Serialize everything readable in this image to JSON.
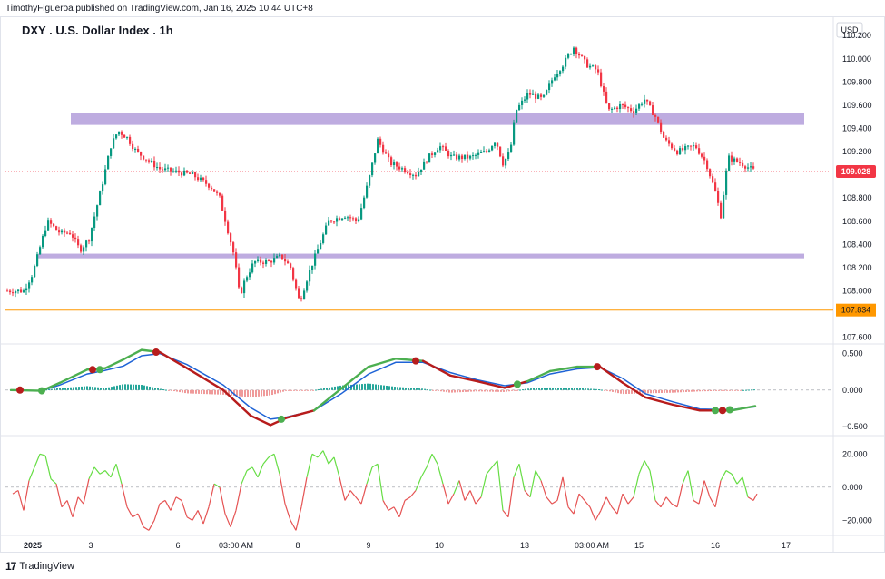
{
  "header": {
    "publisher_line": "TimothyFigueroa published on TradingView.com, Jan 16, 2025 10:44 UTC+8",
    "title": "DXY . U.S. Dollar Index . 1h"
  },
  "footer": {
    "brand": "TradingView",
    "logo_glyph": "17"
  },
  "colors": {
    "bull": "#089981",
    "bear": "#f23645",
    "zone": "#b39ddb",
    "support_line": "#ff9800",
    "price_label_bg": "#f23645",
    "macd_fast": "#4caf50",
    "macd_slow": "#1e63d6",
    "macd_fast_bear": "#b71c1c",
    "hist_bull": "#26a69a",
    "hist_bear": "#ef9a9a",
    "osc_up": "#66dd44",
    "osc_down": "#e55353"
  },
  "chart_data": [
    {
      "type": "candlestick",
      "name": "price",
      "unit_label": "USD",
      "ylim": [
        107.55,
        110.35
      ],
      "yticks": [
        "110.200",
        "110.000",
        "109.800",
        "109.600",
        "109.400",
        "109.200",
        "108.800",
        "108.600",
        "108.400",
        "108.200",
        "108.000",
        "107.600"
      ],
      "xticks": [
        "2025",
        "3",
        "6",
        "03:00 AM",
        "8",
        "9",
        "10",
        "13",
        "03:00 AM",
        "15",
        "16",
        "17"
      ],
      "xtick_bars": [
        30,
        94,
        190,
        254,
        322,
        400,
        478,
        572,
        646,
        698,
        782,
        860
      ],
      "last_price": "109.028",
      "support_price": "107.834",
      "zones": [
        {
          "from_bar": 72,
          "to_bar": 880,
          "low": 109.43,
          "high": 109.53
        },
        {
          "from_bar": 36,
          "to_bar": 880,
          "low": 108.28,
          "high": 108.32
        }
      ],
      "anchors": [
        [
          0,
          108.0
        ],
        [
          20,
          108.0
        ],
        [
          30,
          108.15
        ],
        [
          46,
          108.6
        ],
        [
          60,
          108.5
        ],
        [
          72,
          108.5
        ],
        [
          82,
          108.35
        ],
        [
          92,
          108.45
        ],
        [
          106,
          108.9
        ],
        [
          116,
          109.25
        ],
        [
          124,
          109.38
        ],
        [
          134,
          109.32
        ],
        [
          144,
          109.2
        ],
        [
          170,
          109.05
        ],
        [
          206,
          109.0
        ],
        [
          226,
          108.9
        ],
        [
          236,
          108.8
        ],
        [
          244,
          108.55
        ],
        [
          252,
          108.3
        ],
        [
          258,
          107.95
        ],
        [
          264,
          108.1
        ],
        [
          274,
          108.25
        ],
        [
          290,
          108.25
        ],
        [
          304,
          108.3
        ],
        [
          314,
          108.2
        ],
        [
          324,
          107.9
        ],
        [
          334,
          108.15
        ],
        [
          346,
          108.4
        ],
        [
          356,
          108.6
        ],
        [
          374,
          108.65
        ],
        [
          388,
          108.6
        ],
        [
          400,
          108.95
        ],
        [
          410,
          109.3
        ],
        [
          424,
          109.1
        ],
        [
          438,
          109.05
        ],
        [
          452,
          109.0
        ],
        [
          466,
          109.15
        ],
        [
          478,
          109.25
        ],
        [
          492,
          109.15
        ],
        [
          512,
          109.15
        ],
        [
          530,
          109.2
        ],
        [
          540,
          109.3
        ],
        [
          548,
          109.1
        ],
        [
          556,
          109.2
        ],
        [
          562,
          109.55
        ],
        [
          576,
          109.7
        ],
        [
          592,
          109.65
        ],
        [
          604,
          109.85
        ],
        [
          614,
          109.95
        ],
        [
          626,
          110.1
        ],
        [
          640,
          109.95
        ],
        [
          652,
          109.9
        ],
        [
          664,
          109.55
        ],
        [
          678,
          109.6
        ],
        [
          692,
          109.55
        ],
        [
          704,
          109.65
        ],
        [
          716,
          109.5
        ],
        [
          726,
          109.3
        ],
        [
          740,
          109.2
        ],
        [
          760,
          109.25
        ],
        [
          772,
          109.1
        ],
        [
          782,
          108.85
        ],
        [
          788,
          108.65
        ],
        [
          796,
          109.15
        ],
        [
          810,
          109.1
        ],
        [
          826,
          109.03
        ]
      ]
    },
    {
      "type": "line",
      "name": "macd",
      "ylim": [
        -0.6,
        0.62
      ],
      "yticks": [
        "0.500",
        "0.000",
        "−0.500"
      ],
      "fast": [
        [
          6,
          0.0
        ],
        [
          40,
          -0.01
        ],
        [
          60,
          0.1
        ],
        [
          90,
          0.28
        ],
        [
          110,
          0.3
        ],
        [
          130,
          0.42
        ],
        [
          150,
          0.55
        ],
        [
          170,
          0.52
        ],
        [
          200,
          0.3
        ],
        [
          240,
          0.0
        ],
        [
          270,
          -0.35
        ],
        [
          292,
          -0.48
        ],
        [
          310,
          -0.38
        ],
        [
          340,
          -0.28
        ],
        [
          370,
          0.02
        ],
        [
          400,
          0.32
        ],
        [
          430,
          0.43
        ],
        [
          460,
          0.4
        ],
        [
          490,
          0.2
        ],
        [
          520,
          0.12
        ],
        [
          550,
          0.03
        ],
        [
          575,
          0.12
        ],
        [
          600,
          0.26
        ],
        [
          630,
          0.32
        ],
        [
          655,
          0.32
        ],
        [
          680,
          0.1
        ],
        [
          705,
          -0.1
        ],
        [
          735,
          -0.2
        ],
        [
          765,
          -0.28
        ],
        [
          800,
          -0.28
        ],
        [
          826,
          -0.22
        ]
      ],
      "slow": [
        [
          6,
          0.0
        ],
        [
          40,
          -0.01
        ],
        [
          60,
          0.07
        ],
        [
          90,
          0.22
        ],
        [
          110,
          0.27
        ],
        [
          130,
          0.33
        ],
        [
          150,
          0.47
        ],
        [
          170,
          0.5
        ],
        [
          200,
          0.35
        ],
        [
          240,
          0.07
        ],
        [
          270,
          -0.24
        ],
        [
          292,
          -0.4
        ],
        [
          310,
          -0.37
        ],
        [
          340,
          -0.28
        ],
        [
          370,
          -0.05
        ],
        [
          400,
          0.22
        ],
        [
          430,
          0.38
        ],
        [
          460,
          0.38
        ],
        [
          490,
          0.24
        ],
        [
          520,
          0.14
        ],
        [
          550,
          0.06
        ],
        [
          575,
          0.1
        ],
        [
          600,
          0.22
        ],
        [
          630,
          0.29
        ],
        [
          655,
          0.31
        ],
        [
          680,
          0.16
        ],
        [
          705,
          -0.05
        ],
        [
          735,
          -0.16
        ],
        [
          765,
          -0.26
        ],
        [
          800,
          -0.27
        ],
        [
          826,
          -0.23
        ]
      ],
      "cross_points": [
        {
          "bar": 16,
          "value": 0.0,
          "dir": "bear"
        },
        {
          "bar": 40,
          "value": -0.01,
          "dir": "bull"
        },
        {
          "bar": 96,
          "value": 0.28,
          "dir": "bear"
        },
        {
          "bar": 104,
          "value": 0.28,
          "dir": "bull"
        },
        {
          "bar": 166,
          "value": 0.52,
          "dir": "bear"
        },
        {
          "bar": 304,
          "value": -0.4,
          "dir": "bull"
        },
        {
          "bar": 452,
          "value": 0.4,
          "dir": "bear"
        },
        {
          "bar": 564,
          "value": 0.08,
          "dir": "bull"
        },
        {
          "bar": 652,
          "value": 0.32,
          "dir": "bear"
        },
        {
          "bar": 782,
          "value": -0.28,
          "dir": "bull"
        },
        {
          "bar": 790,
          "value": -0.28,
          "dir": "bear"
        },
        {
          "bar": 798,
          "value": -0.27,
          "dir": "bull"
        }
      ]
    },
    {
      "type": "line",
      "name": "oscillator",
      "ylim": [
        -28,
        30
      ],
      "yticks": [
        "20.000",
        "0.000",
        "−20.000"
      ],
      "values": [
        [
          8,
          -4
        ],
        [
          14,
          -2
        ],
        [
          20,
          -14
        ],
        [
          26,
          4
        ],
        [
          32,
          12
        ],
        [
          38,
          20
        ],
        [
          44,
          19
        ],
        [
          50,
          5
        ],
        [
          56,
          2
        ],
        [
          62,
          -12
        ],
        [
          68,
          -8
        ],
        [
          74,
          -18
        ],
        [
          80,
          -6
        ],
        [
          86,
          -10
        ],
        [
          92,
          5
        ],
        [
          98,
          12
        ],
        [
          104,
          8
        ],
        [
          110,
          10
        ],
        [
          116,
          6
        ],
        [
          122,
          14
        ],
        [
          128,
          2
        ],
        [
          134,
          -12
        ],
        [
          140,
          -18
        ],
        [
          146,
          -16
        ],
        [
          152,
          -24
        ],
        [
          158,
          -26
        ],
        [
          164,
          -20
        ],
        [
          170,
          -10
        ],
        [
          176,
          -8
        ],
        [
          182,
          -14
        ],
        [
          188,
          -6
        ],
        [
          194,
          -8
        ],
        [
          200,
          -18
        ],
        [
          206,
          -20
        ],
        [
          212,
          -14
        ],
        [
          218,
          -22
        ],
        [
          224,
          -12
        ],
        [
          230,
          2
        ],
        [
          236,
          0
        ],
        [
          242,
          -16
        ],
        [
          248,
          -24
        ],
        [
          254,
          -14
        ],
        [
          260,
          2
        ],
        [
          266,
          10
        ],
        [
          272,
          12
        ],
        [
          278,
          6
        ],
        [
          284,
          14
        ],
        [
          290,
          18
        ],
        [
          296,
          20
        ],
        [
          302,
          8
        ],
        [
          308,
          -10
        ],
        [
          314,
          -20
        ],
        [
          320,
          -26
        ],
        [
          326,
          -12
        ],
        [
          332,
          6
        ],
        [
          338,
          20
        ],
        [
          344,
          18
        ],
        [
          350,
          22
        ],
        [
          356,
          14
        ],
        [
          362,
          18
        ],
        [
          368,
          6
        ],
        [
          374,
          -8
        ],
        [
          380,
          -2
        ],
        [
          386,
          -6
        ],
        [
          392,
          -10
        ],
        [
          398,
          2
        ],
        [
          404,
          12
        ],
        [
          410,
          14
        ],
        [
          416,
          -8
        ],
        [
          422,
          -14
        ],
        [
          428,
          -12
        ],
        [
          434,
          -18
        ],
        [
          440,
          -8
        ],
        [
          446,
          -6
        ],
        [
          452,
          -2
        ],
        [
          458,
          6
        ],
        [
          464,
          12
        ],
        [
          470,
          20
        ],
        [
          476,
          14
        ],
        [
          482,
          2
        ],
        [
          488,
          -10
        ],
        [
          494,
          -4
        ],
        [
          500,
          4
        ],
        [
          506,
          -8
        ],
        [
          512,
          -2
        ],
        [
          518,
          -10
        ],
        [
          524,
          -6
        ],
        [
          530,
          8
        ],
        [
          536,
          12
        ],
        [
          542,
          16
        ],
        [
          548,
          -14
        ],
        [
          554,
          -18
        ],
        [
          560,
          6
        ],
        [
          566,
          14
        ],
        [
          572,
          -2
        ],
        [
          578,
          -6
        ],
        [
          584,
          10
        ],
        [
          590,
          4
        ],
        [
          596,
          -6
        ],
        [
          602,
          -10
        ],
        [
          608,
          -8
        ],
        [
          614,
          6
        ],
        [
          620,
          -12
        ],
        [
          626,
          -16
        ],
        [
          632,
          -4
        ],
        [
          638,
          -8
        ],
        [
          644,
          -12
        ],
        [
          650,
          -20
        ],
        [
          656,
          -14
        ],
        [
          662,
          -6
        ],
        [
          668,
          -12
        ],
        [
          674,
          -16
        ],
        [
          680,
          -4
        ],
        [
          686,
          -10
        ],
        [
          692,
          -6
        ],
        [
          698,
          8
        ],
        [
          704,
          16
        ],
        [
          710,
          10
        ],
        [
          716,
          -8
        ],
        [
          722,
          -12
        ],
        [
          728,
          -6
        ],
        [
          734,
          -10
        ],
        [
          740,
          -12
        ],
        [
          746,
          2
        ],
        [
          752,
          10
        ],
        [
          758,
          -8
        ],
        [
          764,
          -10
        ],
        [
          770,
          4
        ],
        [
          776,
          -6
        ],
        [
          782,
          -12
        ],
        [
          788,
          4
        ],
        [
          794,
          10
        ],
        [
          800,
          8
        ],
        [
          806,
          2
        ],
        [
          812,
          6
        ],
        [
          818,
          -6
        ],
        [
          824,
          -8
        ],
        [
          828,
          -4
        ]
      ]
    }
  ]
}
